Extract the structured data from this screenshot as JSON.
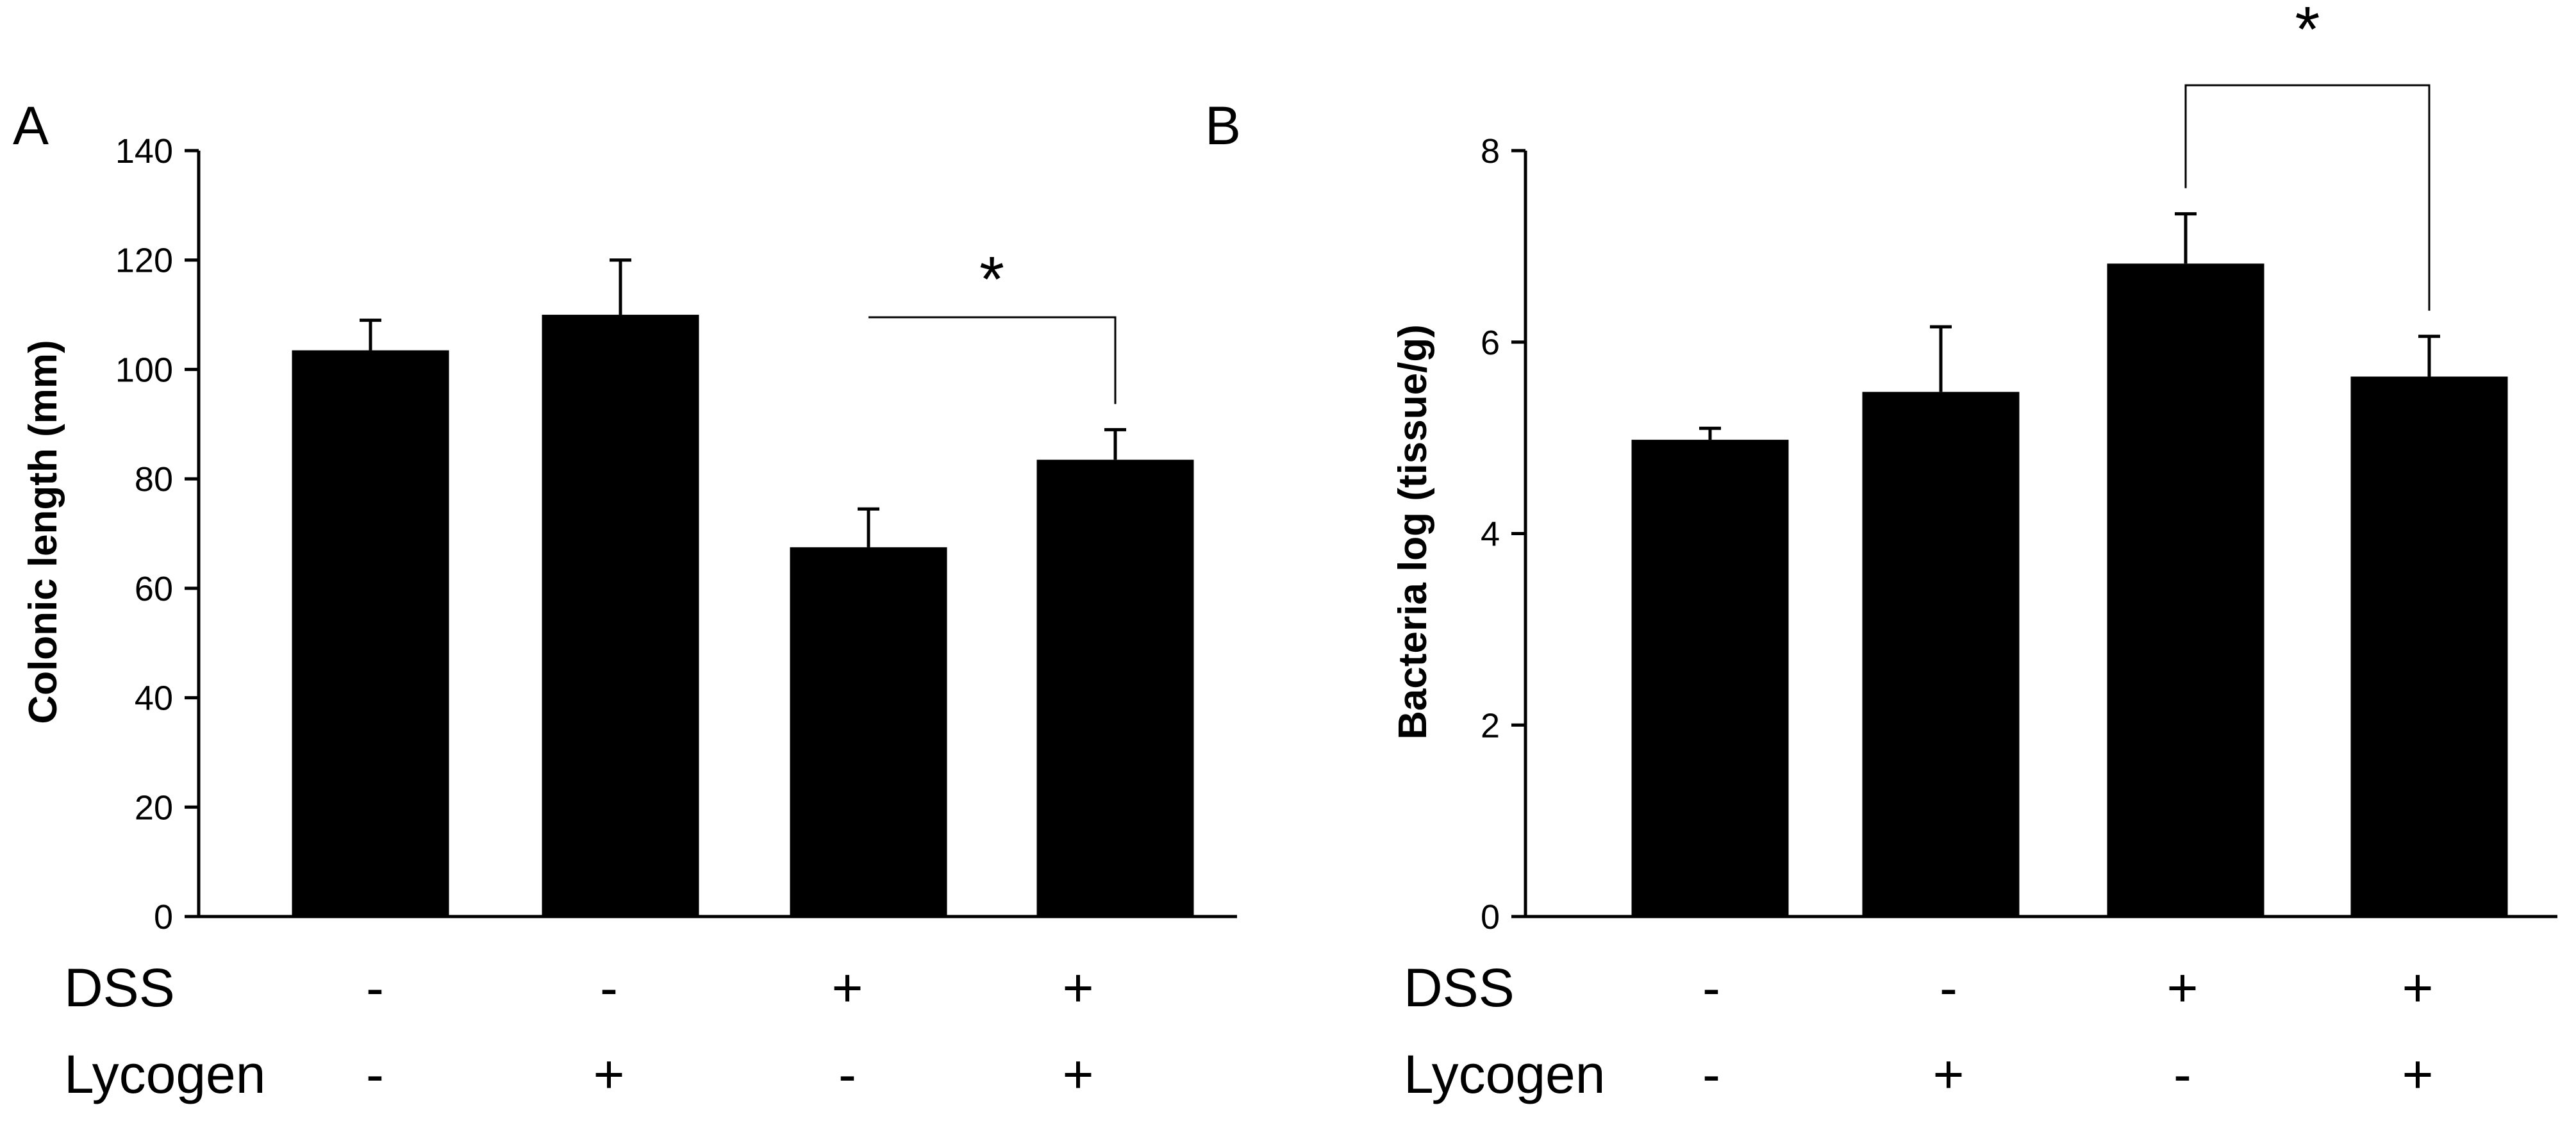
{
  "chart_data": [
    {
      "type": "bar",
      "panel": "A",
      "ylabel": "Colonic length (mm)",
      "ylim": [
        0,
        140
      ],
      "yticks": [
        0,
        20,
        40,
        60,
        80,
        100,
        120,
        140
      ],
      "categories": [
        "DSS - / Lycogen -",
        "DSS - / Lycogen +",
        "DSS + / Lycogen -",
        "DSS + / Lycogen +"
      ],
      "values": [
        103.5,
        110,
        67.5,
        83.5
      ],
      "errors": [
        5.5,
        10,
        7,
        5.5
      ],
      "treatment_rows": [
        {
          "label": "DSS",
          "signs": [
            "-",
            "-",
            "+",
            "+"
          ]
        },
        {
          "label": "Lycogen",
          "signs": [
            "-",
            "+",
            "-",
            "+"
          ]
        }
      ],
      "significance": [
        {
          "between": [
            2,
            3
          ],
          "label": "*"
        }
      ]
    },
    {
      "type": "bar",
      "panel": "B",
      "ylabel": "Bacteria log (tissue/g)",
      "ylim": [
        0,
        8
      ],
      "yticks": [
        0,
        2,
        4,
        6,
        8
      ],
      "categories": [
        "DSS - / Lycogen -",
        "DSS - / Lycogen +",
        "DSS + / Lycogen -",
        "DSS + / Lycogen +"
      ],
      "values": [
        4.98,
        5.48,
        6.82,
        5.64
      ],
      "errors": [
        0.12,
        0.68,
        0.52,
        0.42
      ],
      "treatment_rows": [
        {
          "label": "DSS",
          "signs": [
            "-",
            "-",
            "+",
            "+"
          ]
        },
        {
          "label": "Lycogen",
          "signs": [
            "-",
            "+",
            "-",
            "+"
          ]
        }
      ],
      "significance": [
        {
          "between": [
            2,
            3
          ],
          "label": "*"
        }
      ]
    }
  ]
}
